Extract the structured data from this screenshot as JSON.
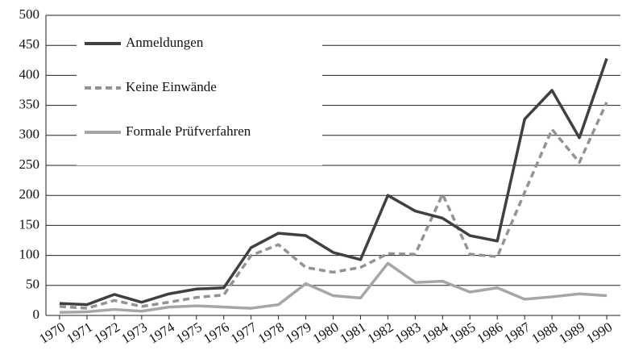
{
  "chart_data": {
    "type": "line",
    "categories": [
      "1970",
      "1971",
      "1972",
      "1973",
      "1974",
      "1975",
      "1976",
      "1977",
      "1978",
      "1979",
      "1980",
      "1981",
      "1982",
      "1983",
      "1984",
      "1985",
      "1986",
      "1987",
      "1988",
      "1989",
      "1990"
    ],
    "series": [
      {
        "name": "Anmeldungen",
        "color": "#404040",
        "dash": "none",
        "values": [
          20,
          18,
          35,
          22,
          36,
          44,
          46,
          113,
          137,
          133,
          105,
          93,
          200,
          174,
          162,
          133,
          124,
          327,
          375,
          296,
          428
        ]
      },
      {
        "name": "Keine Einwände",
        "color": "#939393",
        "dash": "8,5",
        "values": [
          15,
          12,
          25,
          15,
          22,
          30,
          34,
          100,
          118,
          80,
          72,
          80,
          103,
          102,
          202,
          102,
          98,
          205,
          310,
          255,
          355
        ]
      },
      {
        "name": "Formale Prüfverfahren",
        "color": "#a6a6a6",
        "dash": "none",
        "values": [
          5,
          6,
          10,
          7,
          14,
          16,
          14,
          12,
          18,
          53,
          33,
          29,
          87,
          55,
          57,
          39,
          46,
          27,
          31,
          36,
          33
        ]
      }
    ],
    "ylim": [
      0,
      500
    ],
    "yticks": [
      0,
      50,
      100,
      150,
      200,
      250,
      300,
      350,
      400,
      450,
      500
    ],
    "grid": true,
    "legend": "top-left"
  }
}
